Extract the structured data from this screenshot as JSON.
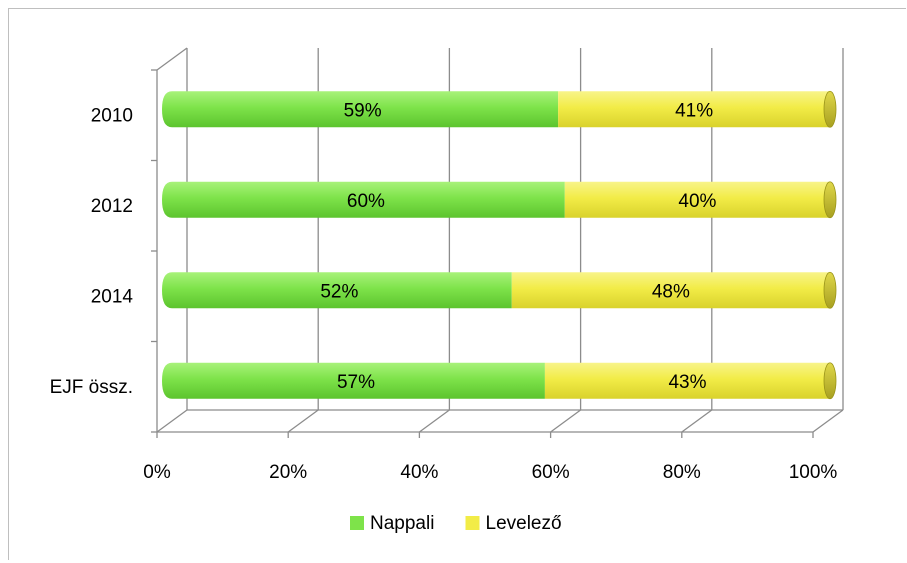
{
  "chart_data": {
    "type": "bar",
    "orientation": "horizontal",
    "stacked": "percent",
    "style": "3d-cylinder",
    "categories": [
      "2010",
      "2012",
      "2014",
      "EJF össz."
    ],
    "series": [
      {
        "name": "Nappali",
        "color": "#7ee34a",
        "values": [
          59,
          60,
          52,
          57
        ],
        "labels": [
          "59%",
          "60%",
          "52%",
          "57%"
        ]
      },
      {
        "name": "Levelező",
        "color": "#f2ec47",
        "values": [
          41,
          40,
          48,
          43
        ],
        "labels": [
          "41%",
          "40%",
          "48%",
          "43%"
        ]
      }
    ],
    "x_ticks": [
      "0%",
      "20%",
      "40%",
      "60%",
      "80%",
      "100%"
    ],
    "xlim": [
      0,
      100
    ],
    "grid": true,
    "legend_position": "bottom"
  }
}
